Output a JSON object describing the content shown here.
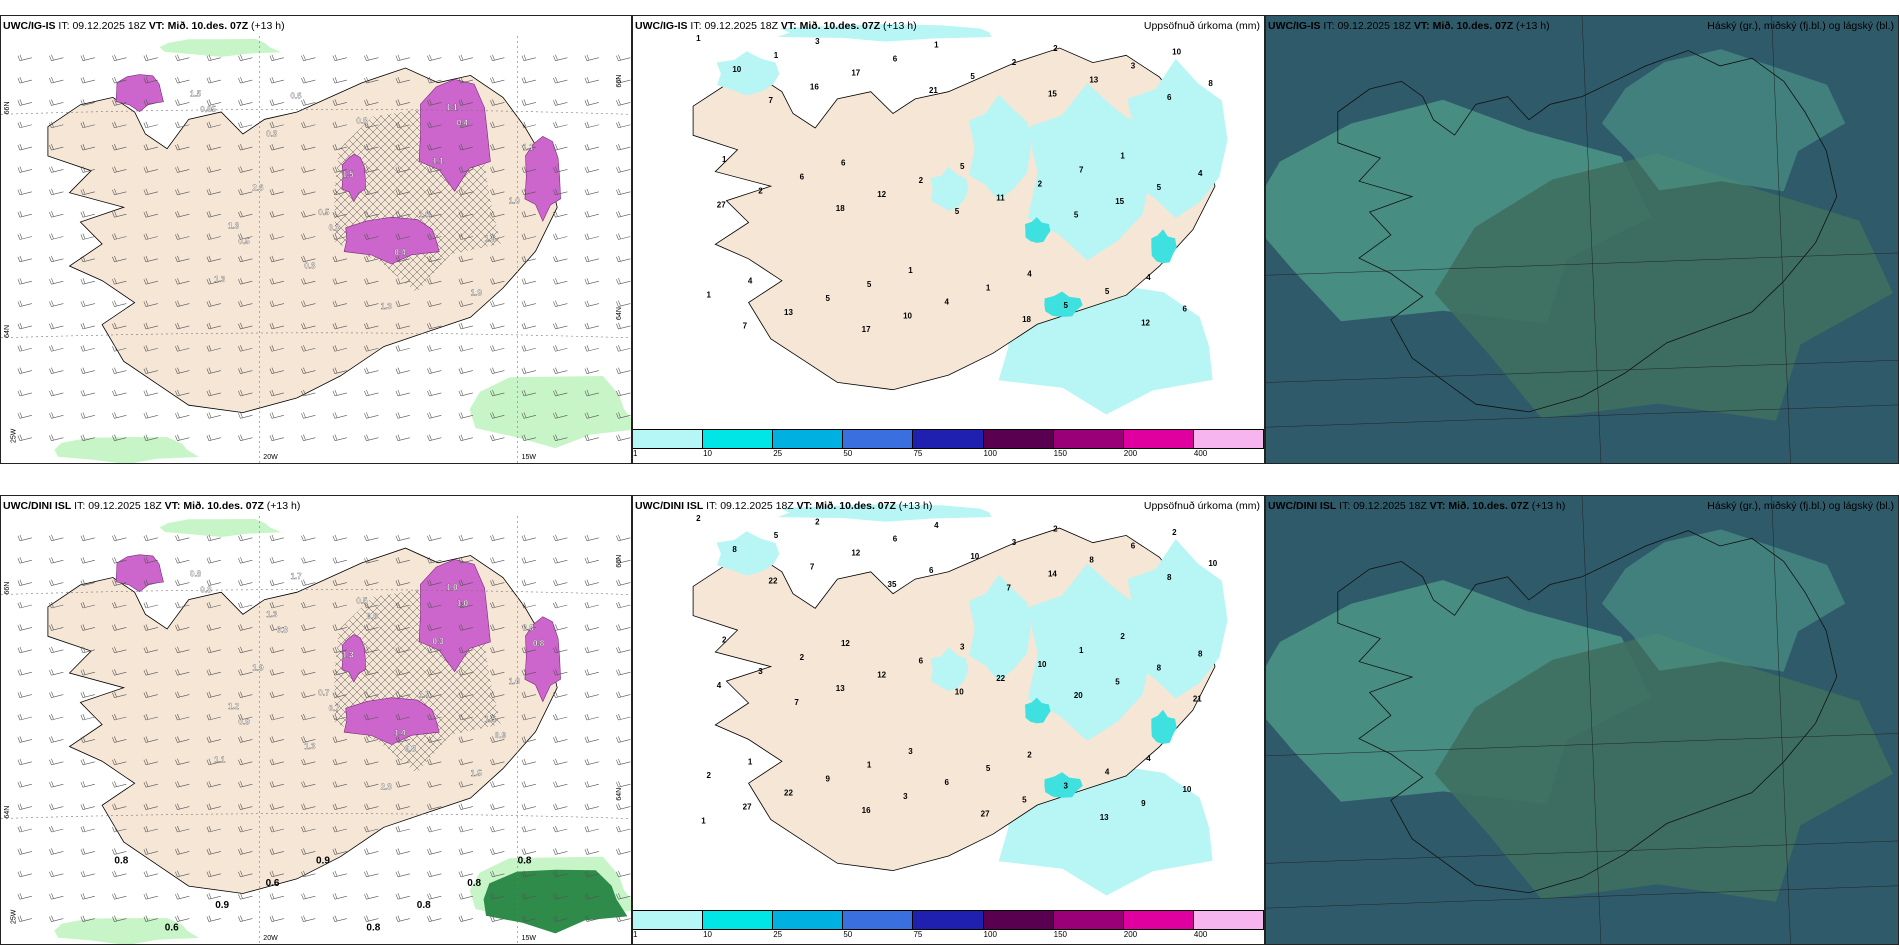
{
  "panels": {
    "wind_top": {
      "model": "UWC/IG-IS",
      "it_label": "IT:",
      "it_value": "09.12.2025 18Z",
      "vt_label": "VT:",
      "vt_value": "Mið. 10.des. 07Z",
      "lead": "(+13 h)",
      "lat_labels": [
        "66N",
        "64N"
      ],
      "lon_labels": [
        "25W",
        "20W",
        "15W"
      ],
      "east_labels": [
        "66N",
        "64N"
      ],
      "values": [
        "1.5",
        "0.5",
        "1.1",
        "1.3",
        "0.8",
        "1.6",
        "0.3",
        "0.4",
        "1.1",
        "0.3",
        "1.1",
        "1.3",
        "1.5",
        "1.9",
        "2.6",
        "1.3",
        "1.0",
        "0.6",
        "1.0",
        "0.95",
        "0.3",
        "0.4",
        "0.5"
      ]
    },
    "precip_top": {
      "model": "UWC/IG-IS",
      "it_label": "IT:",
      "it_value": "09.12.2025 18Z",
      "vt_label": "VT:",
      "vt_value": "Mið. 10.des. 07Z",
      "lead": "(+13 h)",
      "title_right": "Uppsöfnuð úrkoma (mm)",
      "values": [
        "1",
        "1",
        "1",
        "3",
        "4",
        "1",
        "1",
        "4",
        "6",
        "2",
        "4",
        "5",
        "10",
        "5",
        "7",
        "1",
        "1",
        "4",
        "6",
        "5",
        "6",
        "2",
        "1",
        "2",
        "3",
        "5",
        "2",
        "10",
        "4",
        "5",
        "17",
        "5",
        "2",
        "5",
        "6",
        "12",
        "13",
        "13",
        "11",
        "8",
        "10",
        "15",
        "16",
        "18",
        "27",
        "21",
        "12",
        "18",
        "15",
        "7",
        "5",
        "6",
        "17",
        "5",
        "7"
      ]
    },
    "cloud_top": {
      "model": "UWC/IG-IS",
      "it_label": "IT:",
      "it_value": "09.12.2025 18Z",
      "vt_label": "VT:",
      "vt_value": "Mið. 10.des. 07Z",
      "lead": "(+13 h)",
      "title_right": "Háský (gr.), miðský (fj.bl.) og lágský (bl.)"
    },
    "wind_bottom": {
      "model": "UWC/DINI ISL",
      "it_label": "IT:",
      "it_value": "09.12.2025 18Z",
      "vt_label": "VT:",
      "vt_value": "Mið. 10.des. 07Z",
      "lead": "(+13 h)",
      "lat_labels": [
        "66N",
        "64N"
      ],
      "lon_labels": [
        "25W",
        "20W",
        "15W"
      ],
      "east_labels": [
        "66N",
        "64N"
      ],
      "values": [
        "0.8",
        "0.7",
        "1.0",
        "1.2",
        "0.5",
        "1.5",
        "1.3",
        "1.4",
        "0.8",
        "1.3",
        "0.3",
        "1.1",
        "1.3",
        "1.5",
        "1.9",
        "2.3",
        "1.6",
        "1.7",
        "1.7",
        "0.3",
        "0.7",
        "1.0",
        "0.9",
        "0.6",
        "0.9",
        "0.8",
        "0.8",
        "0.8"
      ],
      "green_values": [
        "0.8",
        "0.6",
        "0.9",
        "0.6",
        "0.9",
        "0.8",
        "0.8",
        "0.8",
        "0.8"
      ]
    },
    "precip_bottom": {
      "model": "UWC/DINI ISL",
      "it_label": "IT:",
      "it_value": "09.12.2025 18Z",
      "vt_label": "VT:",
      "vt_value": "Mið. 10.des. 07Z",
      "lead": "(+13 h)",
      "title_right": "Uppsöfnuð úrkoma (mm)",
      "values": [
        "2",
        "3",
        "2",
        "2",
        "2",
        "2",
        "4",
        "4",
        "12",
        "2",
        "1",
        "3",
        "2",
        "1",
        "1",
        "5",
        "5",
        "8",
        "6",
        "4",
        "2",
        "3",
        "2",
        "6",
        "6",
        "9",
        "10",
        "8",
        "6",
        "8",
        "12",
        "3",
        "3",
        "10",
        "10",
        "12",
        "8",
        "22",
        "22",
        "10",
        "3",
        "5",
        "7",
        "5",
        "4",
        "6",
        "9",
        "13",
        "14",
        "27",
        "10",
        "8",
        "16",
        "20",
        "22",
        "27",
        "21",
        "35",
        "13",
        "7",
        "7",
        "1"
      ]
    },
    "cloud_bottom": {
      "model": "UWC/DINI ISL",
      "it_label": "IT:",
      "it_value": "09.12.2025 18Z",
      "vt_label": "VT:",
      "vt_value": "Mið. 10.des. 07Z",
      "lead": "(+13 h)",
      "title_right": "Háský (gr.), miðský (fj.bl.) og lágský (bl.)"
    }
  },
  "colorbar": {
    "colors": [
      "#b5f7f7",
      "#00e5e5",
      "#00b0e0",
      "#3a6fe0",
      "#2020b0",
      "#5a0050",
      "#9a0078",
      "#e000a0",
      "#f7b5f0"
    ],
    "ticks": [
      "1",
      "10",
      "25",
      "50",
      "75",
      "100",
      "150",
      "200",
      "400"
    ]
  },
  "colors": {
    "land": "#f5e6d6",
    "coast": "#000000",
    "precip_light": "#b8f5f5",
    "precip_mid": "#3ee0e0",
    "snow_purple": "#cc66cc",
    "green_light": "#c8f5c8",
    "green_dark": "#2e8b4a",
    "cloud_base": "#3f6f60",
    "cloud_mid": "#4f9a88",
    "cloud_low": "#2f5a6a"
  }
}
